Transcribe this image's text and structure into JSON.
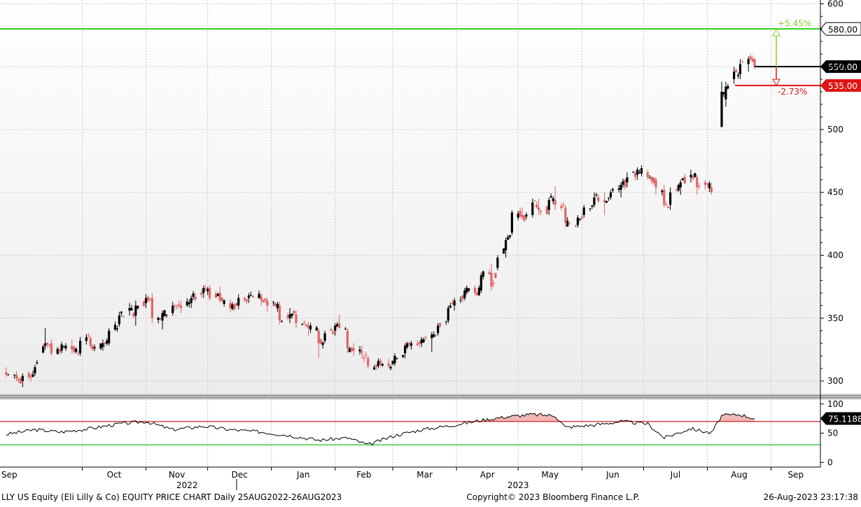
{
  "footer": {
    "left": "LLY US Equity (Eli Lilly & Co) EQUITY PRICE CHART  Daily 25AUG2022-26AUG2023",
    "center": "Copyright© 2023 Bloomberg Finance L.P.",
    "right": "26-Aug-2023 23:17:38"
  },
  "x_axis": {
    "months": [
      "Sep",
      "Oct",
      "Nov",
      "Dec",
      "Jan",
      "Feb",
      "Mar",
      "Apr",
      "May",
      "Jun",
      "Jul",
      "Aug",
      "Sep"
    ],
    "years": [
      "2022",
      "2023"
    ]
  },
  "price_panel": {
    "y_ticks": [
      300,
      350,
      400,
      450,
      500,
      550,
      600
    ],
    "ylim": [
      290,
      603
    ],
    "levels": [
      {
        "name": "upper-target",
        "value": 580.0,
        "label": "580.00",
        "color": "#2ecc18"
      },
      {
        "name": "last-price",
        "value": 550.0,
        "label": "550.00",
        "color": "#000000"
      },
      {
        "name": "stop-level",
        "value": 535.0,
        "label": "535.00",
        "color": "#e01414"
      }
    ],
    "annotations": {
      "up_pct": "+5.45%",
      "down_pct": "-2.73%",
      "up_color": "#8ccc2a",
      "down_color": "#e01414"
    },
    "up_color": "#000000",
    "down_color": "#e06464",
    "grid": true
  },
  "rsi_panel": {
    "y_ticks": [
      0,
      50,
      100
    ],
    "ylim": [
      -8,
      107
    ],
    "overbought": 70,
    "oversold": 30,
    "last_value": "75.1188",
    "overbought_color": "#d02020",
    "oversold_color": "#20c020",
    "fill_color": "#f2b7b7"
  },
  "chart_data": {
    "type": "candlestick",
    "title": "LLY US Equity (Eli Lilly & Co) EQUITY PRICE CHART",
    "period": "Daily 25AUG2022-26AUG2023",
    "x_start": "2022-08-25",
    "x_end": "2023-08-25",
    "ohlc_daily_sampled": [
      [
        "2022-08-25",
        307,
        311,
        303,
        305
      ],
      [
        "2022-08-30",
        305,
        308,
        300,
        302
      ],
      [
        "2022-09-02",
        300,
        306,
        295,
        304
      ],
      [
        "2022-09-08",
        306,
        313,
        304,
        311
      ],
      [
        "2022-09-13",
        328,
        342,
        325,
        330
      ],
      [
        "2022-09-16",
        330,
        333,
        320,
        322
      ],
      [
        "2022-09-21",
        324,
        331,
        322,
        329
      ],
      [
        "2022-09-26",
        328,
        333,
        322,
        325
      ],
      [
        "2022-09-30",
        322,
        335,
        320,
        332
      ],
      [
        "2022-10-05",
        334,
        336,
        326,
        328
      ],
      [
        "2022-10-11",
        327,
        333,
        324,
        330
      ],
      [
        "2022-10-14",
        330,
        342,
        328,
        340
      ],
      [
        "2022-10-19",
        345,
        355,
        343,
        352
      ],
      [
        "2022-10-24",
        356,
        362,
        352,
        358
      ],
      [
        "2022-10-27",
        352,
        364,
        344,
        360
      ],
      [
        "2022-11-01",
        362,
        369,
        358,
        366
      ],
      [
        "2022-11-04",
        366,
        370,
        346,
        350
      ],
      [
        "2022-11-09",
        348,
        356,
        341,
        354
      ],
      [
        "2022-11-14",
        354,
        363,
        352,
        360
      ],
      [
        "2022-11-18",
        360,
        364,
        354,
        358
      ],
      [
        "2022-11-23",
        362,
        368,
        358,
        366
      ],
      [
        "2022-11-29",
        370,
        376,
        366,
        374
      ],
      [
        "2022-12-02",
        374,
        376,
        364,
        366
      ],
      [
        "2022-12-07",
        370,
        375,
        362,
        364
      ],
      [
        "2022-12-12",
        362,
        365,
        355,
        358
      ],
      [
        "2022-12-16",
        360,
        369,
        357,
        366
      ],
      [
        "2022-12-21",
        366,
        370,
        362,
        368
      ],
      [
        "2022-12-27",
        368,
        370,
        360,
        364
      ],
      [
        "2022-12-30",
        364,
        366,
        355,
        360
      ],
      [
        "2023-01-05",
        360,
        363,
        345,
        348
      ],
      [
        "2023-01-10",
        350,
        358,
        346,
        353
      ],
      [
        "2023-01-13",
        353,
        356,
        342,
        346
      ],
      [
        "2023-01-19",
        344,
        347,
        336,
        342
      ],
      [
        "2023-01-24",
        340,
        342,
        318,
        330
      ],
      [
        "2023-01-27",
        332,
        340,
        330,
        338
      ],
      [
        "2023-02-01",
        340,
        346,
        336,
        344
      ],
      [
        "2023-02-03",
        346,
        353,
        343,
        342
      ],
      [
        "2023-02-07",
        340,
        342,
        322,
        326
      ],
      [
        "2023-02-10",
        326,
        330,
        320,
        324
      ],
      [
        "2023-02-14",
        324,
        328,
        318,
        322
      ],
      [
        "2023-02-17",
        318,
        320,
        310,
        312
      ],
      [
        "2023-02-22",
        312,
        318,
        310,
        316
      ],
      [
        "2023-02-27",
        314,
        318,
        310,
        312
      ],
      [
        "2023-03-02",
        314,
        322,
        312,
        320
      ],
      [
        "2023-03-07",
        322,
        330,
        318,
        328
      ],
      [
        "2023-03-10",
        328,
        332,
        325,
        330
      ],
      [
        "2023-03-15",
        330,
        335,
        327,
        333
      ],
      [
        "2023-03-20",
        334,
        339,
        323,
        337
      ],
      [
        "2023-03-23",
        338,
        346,
        336,
        344
      ],
      [
        "2023-03-28",
        348,
        360,
        346,
        358
      ],
      [
        "2023-03-31",
        360,
        366,
        356,
        364
      ],
      [
        "2023-04-05",
        366,
        374,
        364,
        372
      ],
      [
        "2023-04-10",
        374,
        376,
        368,
        370
      ],
      [
        "2023-04-13",
        372,
        386,
        370,
        384
      ],
      [
        "2023-04-18",
        386,
        393,
        372,
        375
      ],
      [
        "2023-04-21",
        390,
        400,
        388,
        398
      ],
      [
        "2023-04-25",
        404,
        414,
        398,
        412
      ],
      [
        "2023-04-28",
        418,
        436,
        416,
        434
      ],
      [
        "2023-05-03",
        432,
        438,
        428,
        430
      ],
      [
        "2023-05-08",
        432,
        445,
        430,
        442
      ],
      [
        "2023-05-11",
        438,
        445,
        432,
        436
      ],
      [
        "2023-05-16",
        436,
        446,
        432,
        444
      ],
      [
        "2023-05-19",
        444,
        455,
        436,
        440
      ],
      [
        "2023-05-24",
        438,
        440,
        422,
        426
      ],
      [
        "2023-05-30",
        424,
        432,
        422,
        430
      ],
      [
        "2023-06-02",
        432,
        440,
        430,
        438
      ],
      [
        "2023-06-07",
        440,
        450,
        438,
        446
      ],
      [
        "2023-06-12",
        444,
        450,
        432,
        442
      ],
      [
        "2023-06-15",
        446,
        452,
        444,
        450
      ],
      [
        "2023-06-20",
        452,
        458,
        446,
        456
      ],
      [
        "2023-06-23",
        458,
        466,
        454,
        462
      ],
      [
        "2023-06-28",
        464,
        470,
        460,
        468
      ],
      [
        "2023-07-03",
        466,
        468,
        460,
        462
      ],
      [
        "2023-07-07",
        460,
        462,
        448,
        454
      ],
      [
        "2023-07-11",
        452,
        456,
        438,
        440
      ],
      [
        "2023-07-14",
        440,
        454,
        436,
        450
      ],
      [
        "2023-07-19",
        454,
        460,
        448,
        458
      ],
      [
        "2023-07-24",
        462,
        468,
        458,
        464
      ],
      [
        "2023-07-27",
        462,
        464,
        448,
        454
      ],
      [
        "2023-07-31",
        458,
        460,
        452,
        456
      ],
      [
        "2023-08-03",
        454,
        458,
        448,
        450
      ],
      [
        "2023-08-08",
        502,
        538,
        502,
        530
      ],
      [
        "2023-08-10",
        524,
        538,
        518,
        534
      ],
      [
        "2023-08-14",
        540,
        550,
        536,
        546
      ],
      [
        "2023-08-17",
        544,
        556,
        540,
        552
      ],
      [
        "2023-08-21",
        552,
        558,
        546,
        556
      ],
      [
        "2023-08-24",
        556,
        557,
        548,
        550
      ]
    ],
    "rsi_sampled": [
      [
        "2022-08-25",
        48
      ],
      [
        "2022-09-08",
        56
      ],
      [
        "2022-09-21",
        52
      ],
      [
        "2022-10-05",
        58
      ],
      [
        "2022-10-19",
        66
      ],
      [
        "2022-11-01",
        70
      ],
      [
        "2022-11-14",
        56
      ],
      [
        "2022-11-29",
        62
      ],
      [
        "2022-12-12",
        56
      ],
      [
        "2022-12-27",
        52
      ],
      [
        "2023-01-10",
        46
      ],
      [
        "2023-01-24",
        38
      ],
      [
        "2023-02-07",
        42
      ],
      [
        "2023-02-17",
        30
      ],
      [
        "2023-03-02",
        46
      ],
      [
        "2023-03-15",
        56
      ],
      [
        "2023-03-31",
        64
      ],
      [
        "2023-04-13",
        72
      ],
      [
        "2023-04-25",
        78
      ],
      [
        "2023-05-08",
        82
      ],
      [
        "2023-05-19",
        80
      ],
      [
        "2023-05-24",
        60
      ],
      [
        "2023-06-07",
        64
      ],
      [
        "2023-06-20",
        70
      ],
      [
        "2023-07-03",
        66
      ],
      [
        "2023-07-11",
        42
      ],
      [
        "2023-07-24",
        58
      ],
      [
        "2023-08-03",
        50
      ],
      [
        "2023-08-08",
        80
      ],
      [
        "2023-08-17",
        82
      ],
      [
        "2023-08-24",
        75.1188
      ]
    ]
  }
}
